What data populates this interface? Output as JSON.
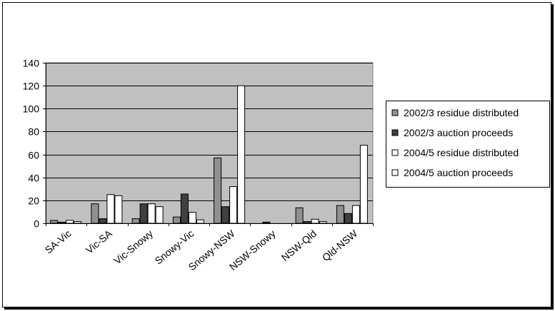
{
  "chart_data": {
    "type": "bar",
    "categories": [
      "SA-Vic",
      "Vic-SA",
      "Vic-Snowy",
      "Snowy-Vic",
      "Snowy-NSW",
      "NSW-Snowy",
      "NSW-Qld",
      "Qld-NSW"
    ],
    "series": [
      {
        "name": "2002/3 residue distributed",
        "color": "#909090",
        "values": [
          2.5,
          17,
          4,
          5.5,
          57,
          0,
          13.5,
          15.5
        ]
      },
      {
        "name": "2002/3 auction proceeds",
        "color": "#404040",
        "values": [
          1,
          4,
          17,
          25.5,
          14.5,
          1,
          1.5,
          8.5
        ]
      },
      {
        "name": "2004/5 residue distributed",
        "color": "#ffffff",
        "values": [
          2.5,
          25,
          17,
          9.5,
          32,
          0,
          3.5,
          15.5
        ]
      },
      {
        "name": "2004/5 auction proceeds",
        "color": "#ffffff",
        "values": [
          1.5,
          24,
          14.5,
          3,
          120,
          0,
          1.5,
          68
        ]
      }
    ],
    "yticks": [
      0,
      20,
      40,
      60,
      80,
      100,
      120,
      140
    ],
    "ylim": [
      0,
      140
    ],
    "grid": true,
    "legend_position": "right",
    "plot_background": "#c0c0c0"
  }
}
